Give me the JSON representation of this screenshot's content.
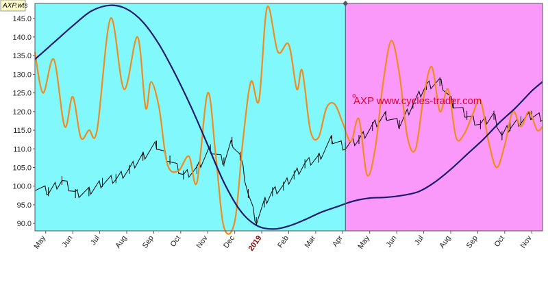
{
  "chart_data": {
    "type": "line",
    "chart_tag": "AXP.wts",
    "watermark": "AXP www.cycles-trader.com",
    "ylim": [
      88,
      149
    ],
    "y_ticks": [
      90.0,
      95.0,
      100.0,
      105.0,
      110.0,
      115.0,
      120.0,
      125.0,
      130.0,
      135.0,
      140.0,
      145.0
    ],
    "y_tick_labels": [
      "90.0",
      "95.0",
      "100.0",
      "105.0",
      "110.0",
      "115.0",
      "120.0",
      "125.0",
      "130.0",
      "135.0",
      "140.0",
      "145.0"
    ],
    "x_range": [
      0,
      18.8
    ],
    "x_ticks": [
      {
        "x": 0.4,
        "label": "May",
        "year": false
      },
      {
        "x": 1.4,
        "label": "Jun",
        "year": false
      },
      {
        "x": 2.4,
        "label": "Jul",
        "year": false
      },
      {
        "x": 3.4,
        "label": "Aug",
        "year": false
      },
      {
        "x": 4.4,
        "label": "Sep",
        "year": false
      },
      {
        "x": 5.4,
        "label": "Oct",
        "year": false
      },
      {
        "x": 6.4,
        "label": "Nov",
        "year": false
      },
      {
        "x": 7.4,
        "label": "Dec",
        "year": false
      },
      {
        "x": 8.4,
        "label": "2019",
        "year": true
      },
      {
        "x": 9.4,
        "label": "Feb",
        "year": false
      },
      {
        "x": 10.4,
        "label": "Mar",
        "year": false
      },
      {
        "x": 11.4,
        "label": "Apr",
        "year": false
      },
      {
        "x": 12.4,
        "label": "May",
        "year": false
      },
      {
        "x": 13.4,
        "label": "Jun",
        "year": false
      },
      {
        "x": 14.4,
        "label": "Jul",
        "year": false
      },
      {
        "x": 15.4,
        "label": "Aug",
        "year": false
      },
      {
        "x": 16.4,
        "label": "Sep",
        "year": false
      },
      {
        "x": 17.4,
        "label": "Oct",
        "year": false
      },
      {
        "x": 18.4,
        "label": "Nov",
        "year": false
      }
    ],
    "regions": [
      {
        "name": "history",
        "x_start": 0,
        "x_end": 11.5,
        "color": "#80f8fc"
      },
      {
        "name": "projection",
        "x_start": 11.5,
        "x_end": 18.8,
        "color": "#fb99fb"
      }
    ],
    "divider_x": 11.5,
    "series": [
      {
        "key": "price",
        "color": "#000000",
        "x": [
          0,
          0.5,
          1.0,
          1.5,
          2.0,
          2.5,
          3.0,
          3.5,
          4.0,
          4.5,
          5.0,
          5.5,
          6.0,
          6.5,
          7.0,
          7.3,
          7.6,
          7.9,
          8.2,
          8.5,
          8.8,
          9.2,
          9.6,
          10.0,
          10.5,
          11.0,
          11.5,
          12.0,
          12.5,
          13.0,
          13.5,
          14.0,
          14.5,
          15.0,
          15.5,
          16.0,
          16.5,
          17.0,
          17.3,
          17.6,
          18.0,
          18.4,
          18.8
        ],
        "values": [
          100,
          98.5,
          101.5,
          98,
          98.5,
          101,
          102,
          104.5,
          108,
          111,
          107,
          103,
          104.5,
          110,
          106.5,
          112,
          108,
          98,
          90.5,
          95.5,
          98.5,
          100,
          103,
          106,
          107.5,
          112.5,
          110.5,
          112.5,
          116,
          119,
          116.5,
          122,
          127,
          128,
          122,
          119,
          116.5,
          119,
          113.5,
          116,
          117.5,
          119,
          118.5
        ]
      },
      {
        "key": "cycle-composite",
        "color": "#f08c1e",
        "x": [
          0,
          0.3,
          0.7,
          1.1,
          1.4,
          1.7,
          2.0,
          2.3,
          2.8,
          3.3,
          3.8,
          4.1,
          4.3,
          4.6,
          4.9,
          5.3,
          5.7,
          6.0,
          6.4,
          6.7,
          7.0,
          7.4,
          7.7,
          8.0,
          8.3,
          8.6,
          9.0,
          9.4,
          9.7,
          9.9,
          10.2,
          10.5,
          10.8,
          11.1,
          11.4,
          11.7,
          12.0,
          12.3,
          12.6,
          12.9,
          13.2,
          13.5,
          13.8,
          14.1,
          14.4,
          14.7,
          15.0,
          15.3,
          15.6,
          15.9,
          16.2,
          16.5,
          16.8,
          17.1,
          17.4,
          17.7,
          18.0,
          18.3,
          18.6,
          18.8
        ],
        "values": [
          136,
          125,
          134,
          116,
          124,
          113,
          115,
          115,
          145,
          126,
          140,
          121,
          128,
          121,
          106,
          104,
          108,
          101,
          125,
          108,
          89,
          90.5,
          112,
          128,
          123,
          148,
          136,
          138,
          126,
          131,
          115,
          113,
          121,
          122,
          117,
          112,
          118,
          103,
          110,
          128,
          139,
          130,
          113,
          110,
          124,
          132,
          120,
          126,
          113,
          114,
          119,
          123,
          112,
          105,
          111,
          120,
          116,
          120,
          115,
          116
        ]
      },
      {
        "key": "dominant-cycle",
        "color": "#1a1a70",
        "x": [
          0,
          0.7,
          1.4,
          2.1,
          2.8,
          3.4,
          4.0,
          4.6,
          5.2,
          5.8,
          6.4,
          7.0,
          7.6,
          8.2,
          8.8,
          9.4,
          10.0,
          10.6,
          11.2,
          11.8,
          12.4,
          13.0,
          13.6,
          14.2,
          14.8,
          15.4,
          16.0,
          16.6,
          17.2,
          17.8,
          18.4,
          18.8
        ],
        "values": [
          134,
          138.5,
          143,
          147,
          148.5,
          147.5,
          144,
          138,
          130,
          121,
          111,
          101,
          93.5,
          89.5,
          88.5,
          89.3,
          91,
          93,
          94.5,
          96,
          96.8,
          97,
          97.5,
          98.5,
          101,
          104.5,
          108.5,
          112.5,
          117,
          121,
          125.5,
          128
        ]
      }
    ]
  }
}
